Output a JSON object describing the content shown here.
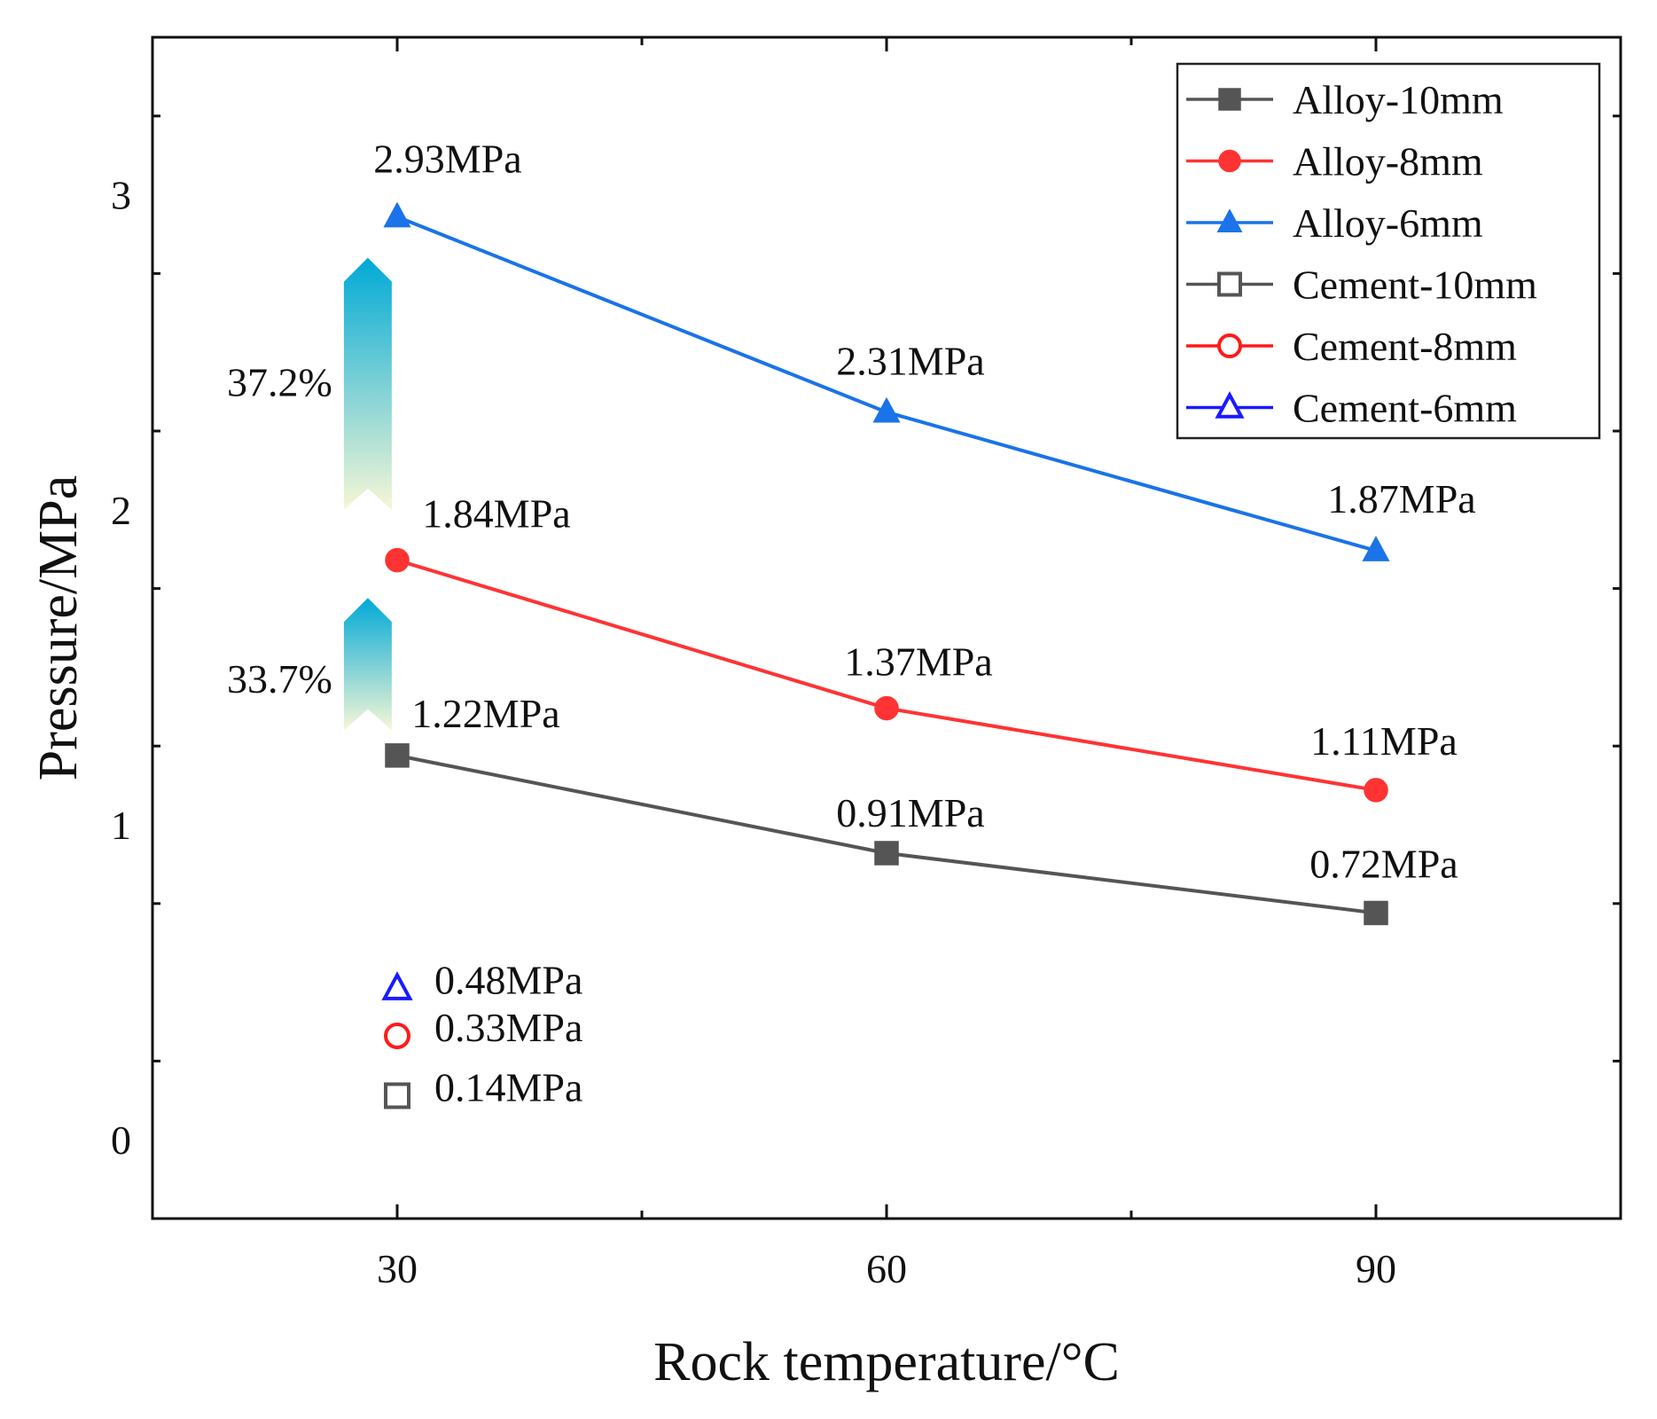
{
  "chart_data": {
    "type": "line",
    "title": "",
    "xlabel": "Rock temperature/°C",
    "ylabel": "Pressure/MPa",
    "xlim": [
      15,
      105
    ],
    "ylim": [
      -0.25,
      3.5
    ],
    "x_ticks": [
      30,
      60,
      90
    ],
    "y_ticks": [
      0,
      1,
      2,
      3
    ],
    "grid": false,
    "legend_position": "top-right",
    "series": [
      {
        "name": "Alloy-10mm",
        "color": "#555555",
        "marker": "square",
        "filled": true,
        "x": [
          30,
          60,
          90
        ],
        "values": [
          1.22,
          0.91,
          0.72
        ],
        "labels": [
          "1.22MPa",
          "0.91MPa",
          "0.72MPa"
        ]
      },
      {
        "name": "Alloy-8mm",
        "color": "#ff3333",
        "marker": "circle",
        "filled": true,
        "x": [
          30,
          60,
          90
        ],
        "values": [
          1.84,
          1.37,
          1.11
        ],
        "labels": [
          "1.84MPa",
          "1.37MPa",
          "1.11MPa"
        ]
      },
      {
        "name": "Alloy-6mm",
        "color": "#1a73e8",
        "marker": "triangle",
        "filled": true,
        "x": [
          30,
          60,
          90
        ],
        "values": [
          2.93,
          2.31,
          1.87
        ],
        "labels": [
          "2.93MPa",
          "2.31MPa",
          "1.87MPa"
        ]
      },
      {
        "name": "Cement-10mm",
        "color": "#555555",
        "marker": "square",
        "filled": false,
        "x": [
          30
        ],
        "values": [
          0.14
        ],
        "labels": [
          "0.14MPa"
        ]
      },
      {
        "name": "Cement-8mm",
        "color": "#ff1a1a",
        "marker": "circle",
        "filled": false,
        "x": [
          30
        ],
        "values": [
          0.33
        ],
        "labels": [
          "0.33MPa"
        ]
      },
      {
        "name": "Cement-6mm",
        "color": "#1a1aff",
        "marker": "triangle",
        "filled": false,
        "x": [
          30
        ],
        "values": [
          0.48
        ],
        "labels": [
          "0.48MPa"
        ]
      }
    ],
    "annotations": [
      {
        "text": "37.2%",
        "type": "increase-arrow",
        "from": 2.0,
        "to": 2.8
      },
      {
        "text": "33.7%",
        "type": "increase-arrow",
        "from": 1.3,
        "to": 1.72
      }
    ]
  }
}
